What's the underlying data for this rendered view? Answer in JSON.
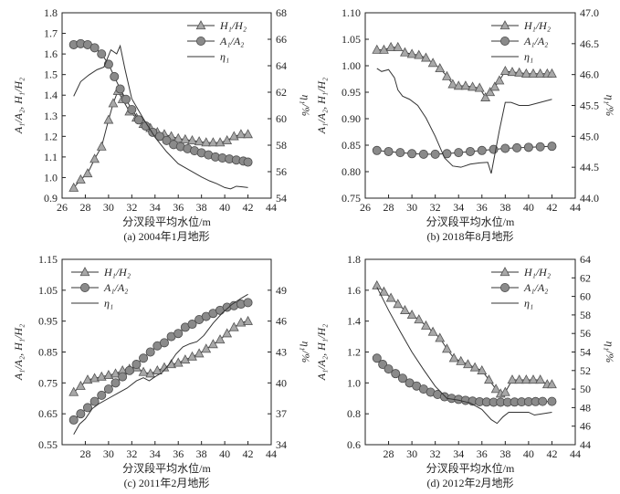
{
  "chart_data": [
    {
      "type": "line",
      "caption": "(a) 2004年1月地形",
      "xlabel": "分汊段平均水位/m",
      "ylabel_left": "A₁/A₂, H₁/H₂",
      "ylabel_right": "η₁/%",
      "xlim": [
        26,
        44
      ],
      "xticks": [
        "26",
        "28",
        "30",
        "32",
        "34",
        "36",
        "38",
        "40",
        "42",
        "44"
      ],
      "ylim_left": [
        0.9,
        1.8
      ],
      "yticks_left": [
        "0.9",
        "1.0",
        "1.1",
        "1.2",
        "1.3",
        "1.4",
        "1.5",
        "1.6",
        "1.7",
        "1.8"
      ],
      "ylim_right": [
        54,
        68
      ],
      "yticks_right": [
        "54",
        "56",
        "58",
        "60",
        "62",
        "64",
        "66",
        "68"
      ],
      "legend": "top-right",
      "series": [
        {
          "name": "H₁/H₂",
          "axis": "left",
          "marker": "triangle",
          "x": [
            27,
            27.6,
            28.2,
            28.8,
            29.4,
            30,
            30.4,
            30.8,
            31.2,
            31.8,
            32.4,
            33,
            33.6,
            34.2,
            34.8,
            35.4,
            36,
            36.6,
            37.2,
            37.8,
            38.4,
            39,
            39.6,
            40.2,
            40.8,
            41.4,
            42
          ],
          "y": [
            0.95,
            0.99,
            1.02,
            1.09,
            1.15,
            1.28,
            1.36,
            1.42,
            1.38,
            1.32,
            1.29,
            1.26,
            1.24,
            1.22,
            1.21,
            1.2,
            1.19,
            1.185,
            1.18,
            1.175,
            1.17,
            1.17,
            1.17,
            1.18,
            1.2,
            1.21,
            1.21
          ]
        },
        {
          "name": "A₁/A₂",
          "axis": "left",
          "marker": "circle",
          "x": [
            27,
            27.6,
            28.2,
            28.8,
            29.4,
            30,
            30.5,
            31,
            31.5,
            32,
            32.6,
            33.2,
            33.8,
            34.4,
            35,
            35.6,
            36.2,
            36.8,
            37.4,
            38,
            38.6,
            39.2,
            39.8,
            40.4,
            41,
            41.6,
            42
          ],
          "y": [
            1.645,
            1.65,
            1.645,
            1.63,
            1.6,
            1.55,
            1.49,
            1.43,
            1.38,
            1.33,
            1.28,
            1.25,
            1.22,
            1.2,
            1.18,
            1.16,
            1.15,
            1.14,
            1.13,
            1.12,
            1.11,
            1.1,
            1.095,
            1.09,
            1.085,
            1.08,
            1.075
          ]
        },
        {
          "name": "η₁",
          "axis": "right",
          "marker": "none",
          "x": [
            27,
            27.6,
            28.3,
            29,
            29.6,
            30.2,
            30.7,
            31,
            31.4,
            32,
            33,
            34,
            35,
            36,
            37,
            38,
            38.7,
            39.3,
            40,
            40.5,
            41,
            41.5,
            42
          ],
          "y": [
            61.7,
            62.8,
            63.3,
            63.7,
            63.9,
            65.2,
            64.9,
            65.5,
            63.8,
            61.5,
            60,
            58.6,
            57.5,
            56.6,
            56.1,
            55.6,
            55.3,
            55.1,
            54.8,
            54.7,
            54.9,
            54.85,
            54.8
          ]
        }
      ]
    },
    {
      "type": "line",
      "caption": "(b) 2018年8月地形",
      "xlabel": "分汊段平均水位/m",
      "ylabel_left": "A₁/A₂, H₁/H₂",
      "ylabel_right": "η₁/%",
      "xlim": [
        26,
        44
      ],
      "xticks": [
        "26",
        "28",
        "30",
        "32",
        "34",
        "36",
        "38",
        "40",
        "42",
        "44"
      ],
      "ylim_left": [
        0.75,
        1.1
      ],
      "yticks_left": [
        "0.75",
        "0.80",
        "0.85",
        "0.90",
        "0.95",
        "1.00",
        "1.05",
        "1.10"
      ],
      "ylim_right": [
        44.0,
        47.0
      ],
      "yticks_right": [
        "44.0",
        "44.5",
        "45.0",
        "45.5",
        "46.0",
        "46.5",
        "47.0"
      ],
      "legend": "top-right",
      "series": [
        {
          "name": "H₁/H₂",
          "axis": "left",
          "marker": "triangle",
          "x": [
            27,
            27.6,
            28.2,
            28.8,
            29.4,
            30,
            30.6,
            31.2,
            31.8,
            32.4,
            33,
            33.5,
            34,
            34.6,
            35.2,
            35.8,
            36.3,
            36.7,
            37.1,
            37.5,
            38,
            38.6,
            39.2,
            39.8,
            40.4,
            41,
            41.6,
            42
          ],
          "y": [
            1.03,
            1.03,
            1.035,
            1.035,
            1.025,
            1.022,
            1.02,
            1.015,
            1.005,
            0.995,
            0.98,
            0.965,
            0.962,
            0.962,
            0.96,
            0.958,
            0.94,
            0.95,
            0.96,
            0.972,
            0.99,
            0.988,
            0.987,
            0.985,
            0.985,
            0.985,
            0.985,
            0.985
          ]
        },
        {
          "name": "A₁/A₂",
          "axis": "left",
          "marker": "circle",
          "x": [
            27,
            28,
            29,
            30,
            31,
            32,
            33,
            34,
            35,
            36,
            37,
            38,
            39,
            40,
            41,
            42
          ],
          "y": [
            0.84,
            0.838,
            0.836,
            0.834,
            0.833,
            0.833,
            0.834,
            0.836,
            0.838,
            0.84,
            0.842,
            0.844,
            0.845,
            0.846,
            0.847,
            0.848
          ]
        },
        {
          "name": "η₁",
          "axis": "right",
          "marker": "none",
          "x": [
            27,
            27.4,
            28,
            28.5,
            28.8,
            29.2,
            29.8,
            30.5,
            31.2,
            32,
            32.8,
            33.5,
            34.2,
            35,
            35.8,
            36.5,
            36.8,
            37,
            37.5,
            38,
            38.5,
            39.2,
            40,
            41,
            42
          ],
          "y": [
            46.1,
            46.05,
            46.08,
            45.95,
            45.75,
            45.65,
            45.6,
            45.5,
            45.3,
            45.0,
            44.65,
            44.52,
            44.5,
            44.55,
            44.57,
            44.58,
            44.4,
            44.6,
            45.1,
            45.55,
            45.55,
            45.5,
            45.5,
            45.55,
            45.6
          ]
        }
      ]
    },
    {
      "type": "line",
      "caption": "(c) 2011年2月地形",
      "xlabel": "分汊段平均水位/m",
      "ylabel_left": "A₁/A₂, H₁/H₂",
      "ylabel_right": "η₁/%",
      "xlim": [
        26,
        44
      ],
      "xticks": [
        "28",
        "30",
        "32",
        "34",
        "36",
        "38",
        "40",
        "42",
        "44"
      ],
      "ylim_left": [
        0.55,
        1.15
      ],
      "yticks_left": [
        "0.55",
        "0.65",
        "0.75",
        "0.85",
        "0.95",
        "1.05",
        "1.15"
      ],
      "ylim_right": [
        34,
        52
      ],
      "yticks_right": [
        "34",
        "37",
        "40",
        "43",
        "46",
        "49"
      ],
      "legend": "top-left",
      "series": [
        {
          "name": "H₁/H₂",
          "axis": "left",
          "marker": "triangle",
          "x": [
            27,
            27.6,
            28.2,
            28.8,
            29.4,
            30,
            30.6,
            31.2,
            31.8,
            32.4,
            33,
            33.6,
            34.2,
            34.8,
            35.4,
            36,
            36.6,
            37.2,
            37.8,
            38.4,
            39,
            39.6,
            40.2,
            40.8,
            41.4,
            42
          ],
          "y": [
            0.72,
            0.74,
            0.76,
            0.765,
            0.77,
            0.775,
            0.78,
            0.79,
            0.795,
            0.8,
            0.785,
            0.78,
            0.79,
            0.8,
            0.81,
            0.815,
            0.825,
            0.835,
            0.845,
            0.86,
            0.875,
            0.89,
            0.91,
            0.93,
            0.945,
            0.95
          ]
        },
        {
          "name": "A₁/A₂",
          "axis": "left",
          "marker": "circle",
          "x": [
            27,
            27.6,
            28.2,
            28.8,
            29.4,
            30,
            30.6,
            31.2,
            31.8,
            32.4,
            33,
            33.6,
            34.2,
            34.8,
            35.4,
            36,
            36.6,
            37.2,
            37.8,
            38.4,
            39,
            39.6,
            40.2,
            40.8,
            41.4,
            42
          ],
          "y": [
            0.63,
            0.65,
            0.67,
            0.69,
            0.71,
            0.73,
            0.75,
            0.77,
            0.79,
            0.81,
            0.83,
            0.85,
            0.87,
            0.88,
            0.9,
            0.91,
            0.93,
            0.94,
            0.955,
            0.965,
            0.975,
            0.985,
            0.995,
            1.0,
            1.005,
            1.01
          ]
        },
        {
          "name": "η₁",
          "axis": "right",
          "marker": "none",
          "x": [
            27,
            27.5,
            28,
            28.6,
            29.2,
            30,
            30.8,
            31.6,
            32.4,
            33,
            33.5,
            34,
            34.6,
            35.2,
            35.8,
            36.4,
            37,
            37.6,
            38.2,
            39,
            39.8,
            40.6,
            41.4,
            42
          ],
          "y": [
            35,
            36,
            36.5,
            37.5,
            38,
            38.5,
            39,
            39.5,
            40.2,
            40.5,
            40.2,
            40.6,
            41,
            41.8,
            42.8,
            43.5,
            43.8,
            44,
            44.6,
            45.8,
            46.8,
            47.6,
            48.2,
            48.6
          ]
        }
      ]
    },
    {
      "type": "line",
      "caption": "(d) 2012年2月地形",
      "xlabel": "分汊段平均水位/m",
      "ylabel_left": "A₁/A₂, H₁/H₂",
      "ylabel_right": "η₁/%",
      "xlim": [
        26,
        44
      ],
      "xticks": [
        "28",
        "30",
        "32",
        "34",
        "36",
        "38",
        "40",
        "42",
        "44"
      ],
      "ylim_left": [
        0.6,
        1.8
      ],
      "yticks_left": [
        "0.6",
        "0.8",
        "1.0",
        "1.2",
        "1.4",
        "1.6",
        "1.8"
      ],
      "ylim_right": [
        44,
        64
      ],
      "yticks_right": [
        "44",
        "46",
        "48",
        "50",
        "52",
        "54",
        "56",
        "58",
        "60",
        "62",
        "64"
      ],
      "legend": "top-right",
      "series": [
        {
          "name": "H₁/H₂",
          "axis": "left",
          "marker": "triangle",
          "x": [
            27,
            27.6,
            28.2,
            28.8,
            29.4,
            30,
            30.6,
            31.2,
            31.8,
            32.4,
            33,
            33.6,
            34.2,
            34.8,
            35.4,
            36,
            36.6,
            37.2,
            37.6,
            38,
            38.6,
            39.2,
            39.8,
            40.4,
            41,
            41.6,
            42
          ],
          "y": [
            1.63,
            1.59,
            1.55,
            1.51,
            1.47,
            1.44,
            1.41,
            1.37,
            1.33,
            1.29,
            1.22,
            1.16,
            1.14,
            1.12,
            1.1,
            1.08,
            1.02,
            0.96,
            0.93,
            0.94,
            1.02,
            1.02,
            1.02,
            1.02,
            1.02,
            0.99,
            0.99
          ]
        },
        {
          "name": "A₁/A₂",
          "axis": "left",
          "marker": "circle",
          "x": [
            27,
            27.5,
            28,
            28.6,
            29.2,
            29.8,
            30.4,
            31,
            31.6,
            32.2,
            32.8,
            33.4,
            34,
            34.6,
            35.2,
            35.8,
            36.4,
            37,
            37.6,
            38.2,
            38.8,
            39.4,
            40,
            40.6,
            41.2,
            42
          ],
          "y": [
            1.16,
            1.12,
            1.09,
            1.06,
            1.03,
            1.0,
            0.98,
            0.96,
            0.94,
            0.925,
            0.91,
            0.9,
            0.893,
            0.887,
            0.882,
            0.878,
            0.876,
            0.875,
            0.875,
            0.875,
            0.876,
            0.877,
            0.878,
            0.879,
            0.88,
            0.88
          ]
        },
        {
          "name": "η₁",
          "axis": "right",
          "marker": "none",
          "x": [
            27,
            28,
            29,
            30,
            31,
            32,
            33,
            34,
            35,
            36,
            36.8,
            37.3,
            37.8,
            38.3,
            39,
            40,
            40.5,
            41,
            42
          ],
          "y": [
            61,
            58.5,
            56.2,
            54,
            52.1,
            50.3,
            49,
            48.8,
            48.5,
            47.8,
            46.7,
            46.3,
            47.0,
            47.5,
            47.5,
            47.5,
            47.2,
            47.3,
            47.5
          ]
        }
      ]
    }
  ]
}
